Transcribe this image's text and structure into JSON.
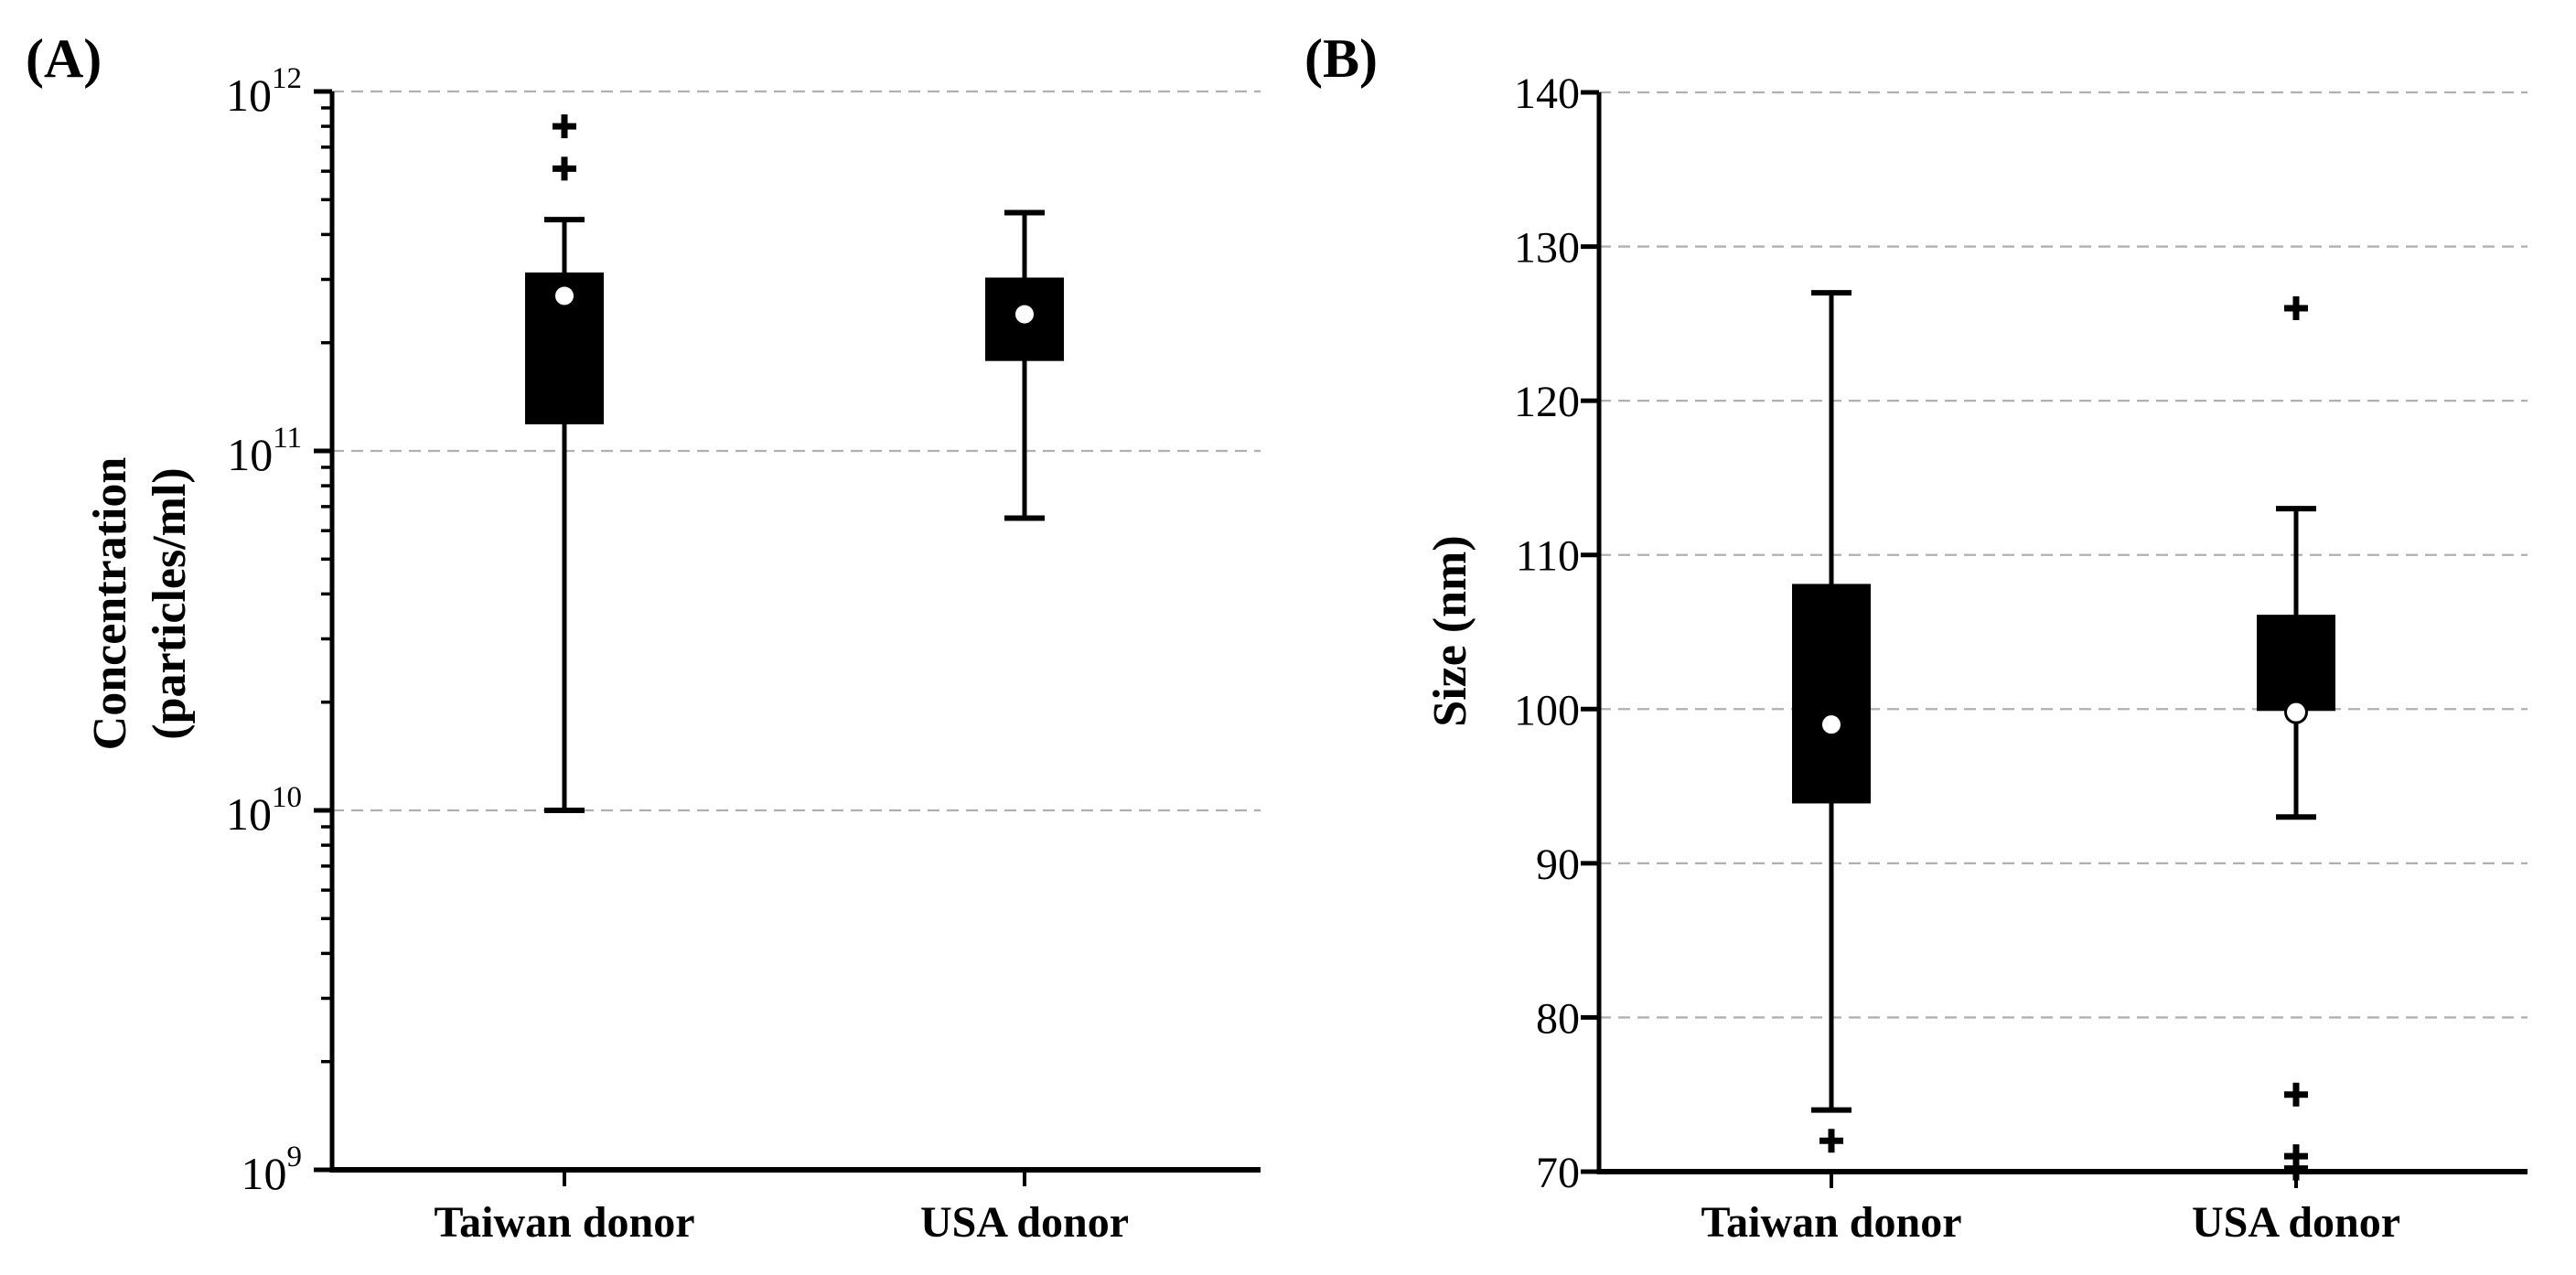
{
  "figure": {
    "background_color": "#ffffff",
    "ink_color": "#000000",
    "grid_color": "#b0b0b0",
    "description": "Two-panel box-and-whisker figure comparing Taiwan and USA donors; solid black boxes, white circle marks the mean, plus signs mark outliers, dashed horizontal gridlines"
  },
  "chart_data": [
    {
      "id": "A",
      "type": "boxplot",
      "panel_label": "(A)",
      "ylabel_lines": [
        "Concentration",
        "(particles/ml)"
      ],
      "yscale": "log",
      "ylim": [
        1000000000.0,
        1000000000000.0
      ],
      "ytick_exponents": [
        12,
        11,
        10,
        9
      ],
      "gridline_values": [
        1000000000000.0,
        100000000000.0,
        10000000000.0
      ],
      "grid_on": true,
      "legend": "none",
      "categories": [
        "Taiwan donor",
        "USA donor"
      ],
      "series": [
        {
          "category": "Taiwan donor",
          "whisker_low": 10000000000.0,
          "q1": 120000000000.0,
          "mean": 270000000000.0,
          "q3": 310000000000.0,
          "whisker_high": 440000000000.0,
          "outliers": [
            610000000000.0,
            800000000000.0
          ]
        },
        {
          "category": "USA donor",
          "whisker_low": 65000000000.0,
          "q1": 180000000000.0,
          "mean": 240000000000.0,
          "q3": 300000000000.0,
          "whisker_high": 460000000000.0,
          "outliers": []
        }
      ],
      "median_line_visible": false,
      "mean_marker": "white-circle",
      "outlier_marker": "plus"
    },
    {
      "id": "B",
      "type": "boxplot",
      "panel_label": "(B)",
      "ylabel_lines": [
        "Size (nm)"
      ],
      "yscale": "linear",
      "ylim": [
        70,
        140
      ],
      "yticks": [
        140,
        130,
        120,
        110,
        100,
        90,
        80,
        70
      ],
      "gridline_values": [
        140,
        130,
        120,
        110,
        100,
        90,
        80
      ],
      "grid_on": true,
      "legend": "none",
      "categories": [
        "Taiwan donor",
        "USA donor"
      ],
      "series": [
        {
          "category": "Taiwan donor",
          "whisker_low": 74,
          "q1": 94,
          "mean": 99,
          "q3": 108,
          "whisker_high": 127,
          "outliers": [
            72
          ]
        },
        {
          "category": "USA donor",
          "whisker_low": 93,
          "q1": 100,
          "mean": 99.8,
          "q3": 106,
          "whisker_high": 113,
          "outliers": [
            126,
            75,
            71,
            70.2
          ]
        }
      ],
      "median_line_visible": false,
      "mean_marker": "white-circle",
      "outlier_marker": "plus"
    }
  ]
}
